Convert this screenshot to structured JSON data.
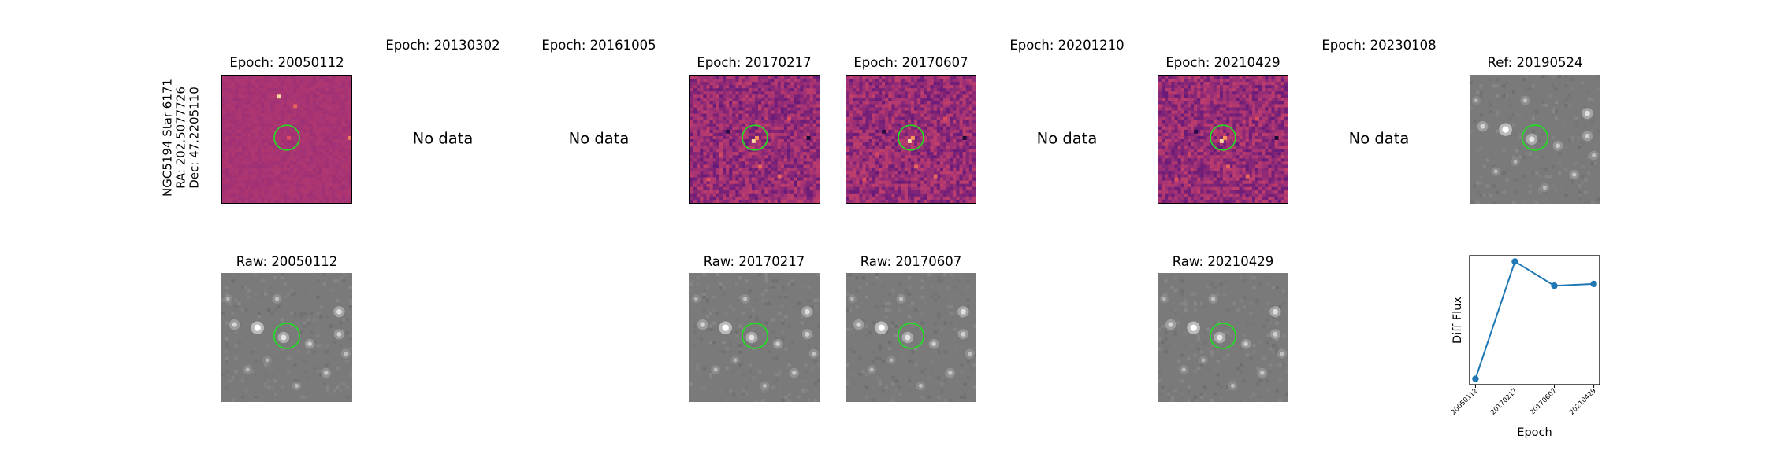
{
  "star": {
    "name": "NGC5194 Star 6171",
    "ra": "RA: 202.5077726",
    "dec": "Dec: 47.2205110"
  },
  "top_row": [
    {
      "title": "Epoch: 20050112",
      "type": "diff",
      "seed": 11
    },
    {
      "title": "Epoch: 20130302",
      "type": "nodata",
      "text": "No data"
    },
    {
      "title": "Epoch: 20161005",
      "type": "nodata",
      "text": "No data"
    },
    {
      "title": "Epoch: 20170217",
      "type": "diff",
      "seed": 23
    },
    {
      "title": "Epoch: 20170607",
      "type": "diff",
      "seed": 37
    },
    {
      "title": "Epoch: 20201210",
      "type": "nodata",
      "text": "No data"
    },
    {
      "title": "Epoch: 20210429",
      "type": "diff",
      "seed": 51
    },
    {
      "title": "Epoch: 20230108",
      "type": "nodata",
      "text": "No data"
    },
    {
      "title": "Ref: 20190524",
      "type": "ref"
    }
  ],
  "bottom_row": [
    {
      "title": "Raw: 20050112"
    },
    {
      "title": "Raw: 20170217"
    },
    {
      "title": "Raw: 20170607"
    },
    {
      "title": "Raw: 20210429"
    }
  ],
  "colors": {
    "circle": "#22dd22",
    "series": "#1f77b4",
    "diff_base": "#a83474",
    "raw_base": "#7c7c7c"
  },
  "chart_data": {
    "type": "line",
    "x": [
      "20050112",
      "20170217",
      "20170607",
      "20210429"
    ],
    "values": [
      0.03,
      1.0,
      0.8,
      0.815
    ],
    "ylabel": "Diff Flux",
    "xlabel": "Epoch",
    "y_ticks_shown": false
  }
}
